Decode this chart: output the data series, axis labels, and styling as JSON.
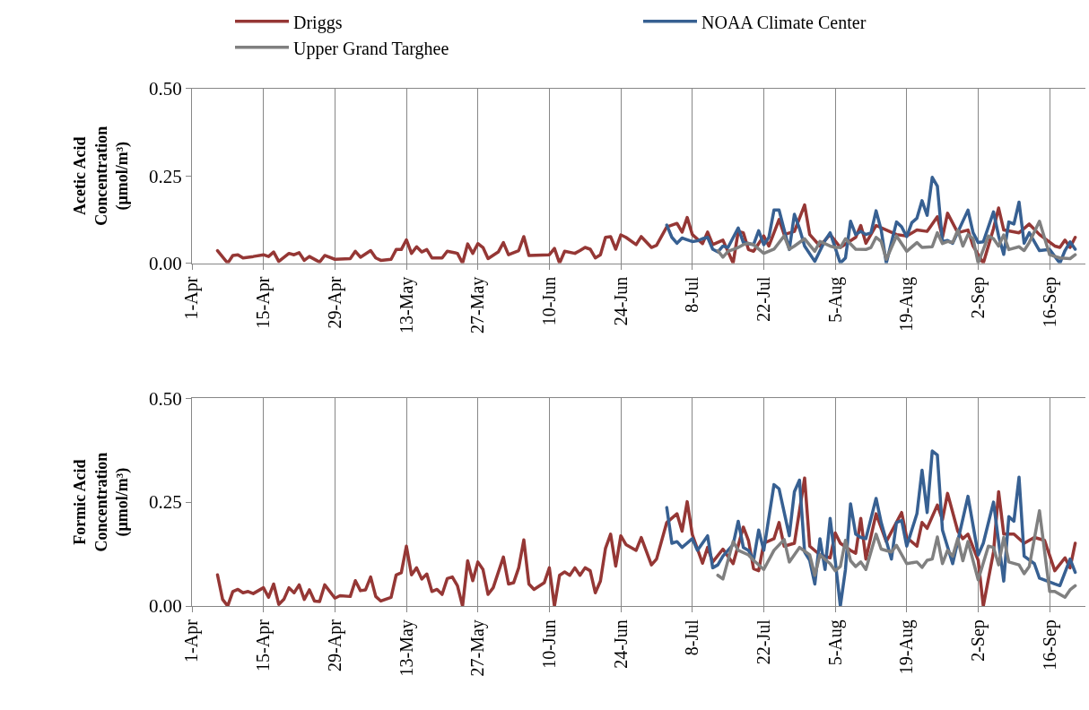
{
  "chart_data": [
    {
      "type": "line",
      "ylabel": "Acetic Acid\nConcentration\n(μmol/m³)",
      "grid": "x",
      "legend": "top",
      "marker": "none",
      "line_style": "solid",
      "xlim": [
        "--04-01",
        "--09-23"
      ],
      "ylim": [
        0,
        0.5
      ],
      "yticks": [
        {
          "value": 0,
          "label": "0.00"
        },
        {
          "value": 0.25,
          "label": "0.25"
        },
        {
          "value": 0.5,
          "label": "0.50"
        }
      ],
      "xticks": [
        {
          "value": "--04-01",
          "label": "1-Apr"
        },
        {
          "value": "--04-15",
          "label": "15-Apr"
        },
        {
          "value": "--04-29",
          "label": "29-Apr"
        },
        {
          "value": "--05-13",
          "label": "13-May"
        },
        {
          "value": "--05-27",
          "label": "27-May"
        },
        {
          "value": "--06-10",
          "label": "10-Jun"
        },
        {
          "value": "--06-24",
          "label": "24-Jun"
        },
        {
          "value": "--07-08",
          "label": "8-Jul"
        },
        {
          "value": "--07-22",
          "label": "22-Jul"
        },
        {
          "value": "--08-05",
          "label": "5-Aug"
        },
        {
          "value": "--08-19",
          "label": "19-Aug"
        },
        {
          "value": "--09-02",
          "label": "2-Sep"
        },
        {
          "value": "--09-16",
          "label": "16-Sep"
        }
      ],
      "series": [
        {
          "name": "Driggs",
          "color": "#953735",
          "x": [
            "--04-06",
            "--04-08",
            "--04-09",
            "--04-10",
            "--04-11",
            "--04-13",
            "--04-15",
            "--04-16",
            "--04-17",
            "--04-18",
            "--04-20",
            "--04-21",
            "--04-22",
            "--04-23",
            "--04-24",
            "--04-26",
            "--04-27",
            "--04-29",
            "--05-02",
            "--05-03",
            "--05-04",
            "--05-06",
            "--05-07",
            "--05-08",
            "--05-10",
            "--05-11",
            "--05-12",
            "--05-13",
            "--05-14",
            "--05-15",
            "--05-16",
            "--05-17",
            "--05-18",
            "--05-20",
            "--05-21",
            "--05-23",
            "--05-24",
            "--05-25",
            "--05-26",
            "--05-27",
            "--05-28",
            "--05-29",
            "--05-31",
            "--06-01",
            "--06-02",
            "--06-04",
            "--06-05",
            "--06-06",
            "--06-10",
            "--06-11",
            "--06-12",
            "--06-13",
            "--06-15",
            "--06-16",
            "--06-17",
            "--06-18",
            "--06-19",
            "--06-20",
            "--06-21",
            "--06-22",
            "--06-23",
            "--06-24",
            "--06-25",
            "--06-27",
            "--06-28",
            "--06-30",
            "--07-01",
            "--07-03",
            "--07-05",
            "--07-06",
            "--07-07",
            "--07-08",
            "--07-10",
            "--07-11",
            "--07-12",
            "--07-14",
            "--07-16",
            "--07-17",
            "--07-18",
            "--07-19",
            "--07-20",
            "--07-22",
            "--07-23",
            "--07-25",
            "--07-26",
            "--07-28",
            "--07-30",
            "--07-31",
            "--08-02",
            "--08-04",
            "--08-06",
            "--08-09",
            "--08-10",
            "--08-11",
            "--08-13",
            "--08-17",
            "--08-19",
            "--08-21",
            "--08-23",
            "--08-25",
            "--08-26",
            "--08-27",
            "--08-29",
            "--08-31",
            "--09-01",
            "--09-03",
            "--09-05",
            "--09-06",
            "--09-07",
            "--09-10",
            "--09-12",
            "--09-14",
            "--09-17",
            "--09-18",
            "--09-19",
            "--09-20",
            "--09-21"
          ],
          "values": [
            0.036,
            0,
            0.022,
            0.024,
            0.015,
            0.019,
            0.024,
            0.019,
            0.032,
            0.005,
            0.028,
            0.024,
            0.03,
            0.008,
            0.019,
            0.003,
            0.022,
            0.011,
            0.013,
            0.034,
            0.017,
            0.036,
            0.015,
            0.008,
            0.011,
            0.039,
            0.039,
            0.067,
            0.028,
            0.047,
            0.032,
            0.039,
            0.015,
            0.015,
            0.034,
            0.028,
            0,
            0.055,
            0.028,
            0.056,
            0.045,
            0.013,
            0.032,
            0.059,
            0.024,
            0.036,
            0.076,
            0.022,
            0.024,
            0.042,
            0,
            0.034,
            0.028,
            0.036,
            0.045,
            0.04,
            0.015,
            0.024,
            0.074,
            0.076,
            0.04,
            0.081,
            0.074,
            0.053,
            0.076,
            0.045,
            0.051,
            0.104,
            0.114,
            0.089,
            0.131,
            0.082,
            0.056,
            0.089,
            0.053,
            0.066,
            0,
            0.091,
            0.087,
            0.039,
            0.034,
            0.078,
            0.049,
            0.125,
            0.082,
            0.091,
            0.167,
            0.082,
            0.049,
            0.082,
            0.045,
            0.074,
            0.108,
            0.057,
            0.108,
            0.082,
            0.078,
            0.095,
            0.091,
            0.133,
            0.074,
            0.143,
            0.087,
            0.095,
            0.049,
            0,
            0.099,
            0.158,
            0.095,
            0.087,
            0.112,
            0.082,
            0.049,
            0.045,
            0.066,
            0.045,
            0.074
          ]
        },
        {
          "name": "NOAA Climate Center",
          "color": "#376092",
          "x": [
            "--07-03",
            "--07-04",
            "--07-05",
            "--07-06",
            "--07-08",
            "--07-09",
            "--07-10",
            "--07-11",
            "--07-12",
            "--07-13",
            "--07-14",
            "--07-15",
            "--07-17",
            "--07-18",
            "--07-20",
            "--07-21",
            "--07-22",
            "--07-23",
            "--07-24",
            "--07-25",
            "--07-27",
            "--07-28",
            "--07-29",
            "--07-30",
            "--08-01",
            "--08-03",
            "--08-04",
            "--08-06",
            "--08-07",
            "--08-08",
            "--08-09",
            "--08-10",
            "--08-11",
            "--08-12",
            "--08-13",
            "--08-14",
            "--08-15",
            "--08-17",
            "--08-18",
            "--08-19",
            "--08-20",
            "--08-21",
            "--08-22",
            "--08-23",
            "--08-24",
            "--08-25",
            "--08-26",
            "--08-27",
            "--08-28",
            "--08-31",
            "--09-01",
            "--09-02",
            "--09-03",
            "--09-05",
            "--09-06",
            "--09-07",
            "--09-08",
            "--09-09",
            "--09-10",
            "--09-11",
            "--09-12",
            "--09-14",
            "--09-16",
            "--09-18",
            "--09-19",
            "--09-20",
            "--09-21"
          ],
          "values": [
            0.109,
            0.074,
            0.057,
            0.072,
            0.062,
            0.064,
            0.07,
            0.074,
            0.04,
            0.032,
            0.049,
            0.045,
            0.101,
            0.059,
            0.053,
            0.093,
            0.053,
            0.074,
            0.152,
            0.152,
            0.039,
            0.14,
            0.099,
            0.049,
            0.005,
            0.065,
            0.087,
            0,
            0.015,
            0.12,
            0.082,
            0.091,
            0.082,
            0.087,
            0.15,
            0.095,
            0,
            0.118,
            0.104,
            0.076,
            0.116,
            0.129,
            0.179,
            0.137,
            0.246,
            0.221,
            0.061,
            0.065,
            0.057,
            0.152,
            0.087,
            0.059,
            0.061,
            0.147,
            0.078,
            0.025,
            0.118,
            0.112,
            0.175,
            0.057,
            0.087,
            0.036,
            0.039,
            0,
            0.036,
            0.061,
            0.04
          ]
        },
        {
          "name": "Upper Grand Targhee",
          "color": "#808080",
          "x": [
            "--07-13",
            "--07-14",
            "--07-15",
            "--07-17",
            "--07-18",
            "--07-19",
            "--07-20",
            "--07-22",
            "--07-24",
            "--07-26",
            "--07-27",
            "--07-28",
            "--07-30",
            "--08-01",
            "--08-02",
            "--08-04",
            "--08-05",
            "--08-06",
            "--08-07",
            "--08-09",
            "--08-11",
            "--08-12",
            "--08-13",
            "--08-14",
            "--08-15",
            "--08-17",
            "--08-19",
            "--08-21",
            "--08-22",
            "--08-24",
            "--08-25",
            "--08-26",
            "--08-27",
            "--08-28",
            "--08-29",
            "--08-30",
            "--08-31",
            "--09-01",
            "--09-02",
            "--09-04",
            "--09-05",
            "--09-06",
            "--09-07",
            "--09-08",
            "--09-10",
            "--09-11",
            "--09-12",
            "--09-14",
            "--09-16",
            "--09-18",
            "--09-20",
            "--09-21"
          ],
          "values": [
            0.036,
            0.017,
            0.034,
            0.045,
            0.053,
            0.057,
            0.053,
            0.028,
            0.04,
            0.078,
            0.04,
            0.049,
            0.07,
            0.034,
            0.062,
            0.049,
            0.045,
            0.045,
            0.07,
            0.04,
            0.039,
            0.045,
            0.074,
            0.062,
            0.011,
            0.078,
            0.034,
            0.059,
            0.045,
            0.047,
            0.087,
            0.056,
            0.062,
            0.059,
            0.095,
            0.049,
            0.082,
            0.07,
            0,
            0.078,
            0.07,
            0.049,
            0.081,
            0.039,
            0.047,
            0.036,
            0.059,
            0.12,
            0.024,
            0.015,
            0.013,
            0.024
          ]
        }
      ]
    },
    {
      "type": "line",
      "ylabel": "Formic Acid\nConcentration\n(μmol/m³)",
      "grid": "x",
      "marker": "none",
      "line_style": "solid",
      "xlim": [
        "--04-01",
        "--09-23"
      ],
      "ylim": [
        0,
        0.5
      ],
      "yticks": [
        {
          "value": 0,
          "label": "0.00"
        },
        {
          "value": 0.25,
          "label": "0.25"
        },
        {
          "value": 0.5,
          "label": "0.50"
        }
      ],
      "xticks": [
        {
          "value": "--04-01",
          "label": "1-Apr"
        },
        {
          "value": "--04-15",
          "label": "15-Apr"
        },
        {
          "value": "--04-29",
          "label": "29-Apr"
        },
        {
          "value": "--05-13",
          "label": "13-May"
        },
        {
          "value": "--05-27",
          "label": "27-May"
        },
        {
          "value": "--06-10",
          "label": "10-Jun"
        },
        {
          "value": "--06-24",
          "label": "24-Jun"
        },
        {
          "value": "--07-08",
          "label": "8-Jul"
        },
        {
          "value": "--07-22",
          "label": "22-Jul"
        },
        {
          "value": "--08-05",
          "label": "5-Aug"
        },
        {
          "value": "--08-19",
          "label": "19-Aug"
        },
        {
          "value": "--09-02",
          "label": "2-Sep"
        },
        {
          "value": "--09-16",
          "label": "16-Sep"
        }
      ],
      "series": [
        {
          "color": "#953735",
          "x": [
            "--04-06",
            "--04-07",
            "--04-08",
            "--04-09",
            "--04-10",
            "--04-11",
            "--04-12",
            "--04-13",
            "--04-15",
            "--04-16",
            "--04-17",
            "--04-18",
            "--04-19",
            "--04-20",
            "--04-21",
            "--04-22",
            "--04-23",
            "--04-24",
            "--04-25",
            "--04-26",
            "--04-27",
            "--04-29",
            "--04-30",
            "--05-02",
            "--05-03",
            "--05-04",
            "--05-05",
            "--05-06",
            "--05-07",
            "--05-08",
            "--05-10",
            "--05-11",
            "--05-12",
            "--05-13",
            "--05-14",
            "--05-15",
            "--05-16",
            "--05-17",
            "--05-18",
            "--05-19",
            "--05-20",
            "--05-21",
            "--05-22",
            "--05-23",
            "--05-24",
            "--05-25",
            "--05-26",
            "--05-27",
            "--05-28",
            "--05-29",
            "--05-30",
            "--06-01",
            "--06-02",
            "--06-03",
            "--06-04",
            "--06-05",
            "--06-06",
            "--06-07",
            "--06-09",
            "--06-10",
            "--06-11",
            "--06-12",
            "--06-13",
            "--06-14",
            "--06-15",
            "--06-16",
            "--06-17",
            "--06-18",
            "--06-19",
            "--06-20",
            "--06-21",
            "--06-22",
            "--06-23",
            "--06-24",
            "--06-25",
            "--06-27",
            "--06-28",
            "--06-30",
            "--07-01",
            "--07-03",
            "--07-05",
            "--07-06",
            "--07-07",
            "--07-08",
            "--07-10",
            "--07-11",
            "--07-12",
            "--07-14",
            "--07-16",
            "--07-18",
            "--07-19",
            "--07-20",
            "--07-21",
            "--07-22",
            "--07-24",
            "--07-25",
            "--07-26",
            "--07-28",
            "--07-30",
            "--07-31",
            "--08-02",
            "--08-04",
            "--08-05",
            "--08-06",
            "--08-08",
            "--08-09",
            "--08-10",
            "--08-11",
            "--08-13",
            "--08-15",
            "--08-18",
            "--08-19",
            "--08-21",
            "--08-22",
            "--08-23",
            "--08-25",
            "--08-26",
            "--08-27",
            "--08-29",
            "--08-30",
            "--08-31",
            "--09-02",
            "--09-03",
            "--09-05",
            "--09-06",
            "--09-07",
            "--09-09",
            "--09-11",
            "--09-13",
            "--09-15",
            "--09-17",
            "--09-19",
            "--09-20",
            "--09-21"
          ],
          "values": [
            0.075,
            0.016,
            0,
            0.035,
            0.04,
            0.032,
            0.035,
            0.03,
            0.044,
            0.021,
            0.053,
            0.004,
            0.016,
            0.044,
            0.032,
            0.051,
            0.016,
            0.039,
            0.012,
            0.011,
            0.051,
            0.019,
            0.025,
            0.023,
            0.061,
            0.037,
            0.039,
            0.07,
            0.023,
            0.012,
            0.021,
            0.075,
            0.08,
            0.144,
            0.075,
            0.092,
            0.065,
            0.077,
            0.035,
            0.04,
            0.028,
            0.066,
            0.07,
            0.049,
            0,
            0.109,
            0.061,
            0.106,
            0.088,
            0.028,
            0.044,
            0.118,
            0.053,
            0.056,
            0.092,
            0.159,
            0.053,
            0.04,
            0.056,
            0.092,
            0,
            0.074,
            0.082,
            0.074,
            0.092,
            0.074,
            0.092,
            0.085,
            0.032,
            0.06,
            0.139,
            0.173,
            0.096,
            0.169,
            0.148,
            0.134,
            0.165,
            0.099,
            0.113,
            0.201,
            0.222,
            0.18,
            0.251,
            0.172,
            0.103,
            0.141,
            0.106,
            0.137,
            0.102,
            0.19,
            0.158,
            0.09,
            0.085,
            0.151,
            0.162,
            0.201,
            0.144,
            0.151,
            0.308,
            0.144,
            0.123,
            0.116,
            0.176,
            0.151,
            0.134,
            0.127,
            0.211,
            0.113,
            0.222,
            0.155,
            0.225,
            0.165,
            0.144,
            0.201,
            0.187,
            0.243,
            0.208,
            0.271,
            0.18,
            0.162,
            0.173,
            0.11,
            0,
            0.13,
            0.275,
            0.173,
            0.173,
            0.151,
            0.165,
            0.158,
            0.085,
            0.116,
            0.092,
            0.151
          ]
        },
        {
          "color": "#376092",
          "x": [
            "--07-03",
            "--07-04",
            "--07-05",
            "--07-06",
            "--07-08",
            "--07-09",
            "--07-11",
            "--07-12",
            "--07-13",
            "--07-14",
            "--07-16",
            "--07-17",
            "--07-18",
            "--07-19",
            "--07-20",
            "--07-21",
            "--07-22",
            "--07-24",
            "--07-25",
            "--07-27",
            "--07-28",
            "--07-29",
            "--07-30",
            "--07-31",
            "--08-01",
            "--08-02",
            "--08-03",
            "--08-04",
            "--08-05",
            "--08-06",
            "--08-07",
            "--08-08",
            "--08-09",
            "--08-10",
            "--08-11",
            "--08-13",
            "--08-14",
            "--08-16",
            "--08-17",
            "--08-18",
            "--08-19",
            "--08-21",
            "--08-22",
            "--08-23",
            "--08-24",
            "--08-25",
            "--08-26",
            "--08-28",
            "--08-31",
            "--09-02",
            "--09-03",
            "--09-05",
            "--09-07",
            "--09-08",
            "--09-09",
            "--09-10",
            "--09-11",
            "--09-13",
            "--09-14",
            "--09-17",
            "--09-18",
            "--09-20",
            "--09-21"
          ],
          "values": [
            0.237,
            0.151,
            0.155,
            0.141,
            0.162,
            0.134,
            0.169,
            0.092,
            0.099,
            0.12,
            0.148,
            0.204,
            0.141,
            0.134,
            0.11,
            0.183,
            0.134,
            0.292,
            0.282,
            0.169,
            0.275,
            0.303,
            0.13,
            0.11,
            0.053,
            0.162,
            0.088,
            0.211,
            0.109,
            0,
            0.088,
            0.246,
            0.173,
            0.165,
            0.162,
            0.259,
            0.201,
            0.113,
            0.201,
            0.206,
            0.144,
            0.222,
            0.327,
            0.225,
            0.373,
            0.363,
            0.183,
            0.102,
            0.264,
            0.123,
            0.151,
            0.25,
            0.06,
            0.215,
            0.204,
            0.31,
            0.12,
            0.102,
            0.067,
            0.053,
            0.049,
            0.113,
            0.081
          ]
        },
        {
          "color": "#808080",
          "x": [
            "--07-13",
            "--07-14",
            "--07-16",
            "--07-17",
            "--07-19",
            "--07-20",
            "--07-22",
            "--07-24",
            "--07-26",
            "--07-27",
            "--07-29",
            "--07-31",
            "--08-01",
            "--08-02",
            "--08-04",
            "--08-05",
            "--08-06",
            "--08-07",
            "--08-08",
            "--08-09",
            "--08-10",
            "--08-11",
            "--08-13",
            "--08-14",
            "--08-16",
            "--08-17",
            "--08-19",
            "--08-21",
            "--08-22",
            "--08-23",
            "--08-24",
            "--08-25",
            "--08-26",
            "--08-27",
            "--08-28",
            "--08-29",
            "--08-30",
            "--08-31",
            "--09-02",
            "--09-04",
            "--09-05",
            "--09-06",
            "--09-07",
            "--09-08",
            "--09-10",
            "--09-11",
            "--09-12",
            "--09-14",
            "--09-16",
            "--09-17",
            "--09-19",
            "--09-20",
            "--09-21"
          ],
          "values": [
            0.074,
            0.065,
            0.155,
            0.134,
            0.123,
            0.11,
            0.088,
            0.134,
            0.16,
            0.106,
            0.141,
            0.123,
            0.074,
            0.123,
            0.102,
            0.085,
            0.095,
            0.158,
            0.109,
            0.095,
            0.106,
            0.088,
            0.173,
            0.137,
            0.13,
            0.146,
            0.102,
            0.106,
            0.093,
            0.11,
            0.113,
            0.166,
            0.102,
            0.134,
            0.12,
            0.162,
            0.109,
            0.155,
            0.063,
            0.144,
            0.141,
            0.099,
            0.165,
            0.106,
            0.099,
            0.078,
            0.095,
            0.229,
            0.035,
            0.035,
            0.021,
            0.039,
            0.049
          ]
        }
      ]
    }
  ]
}
